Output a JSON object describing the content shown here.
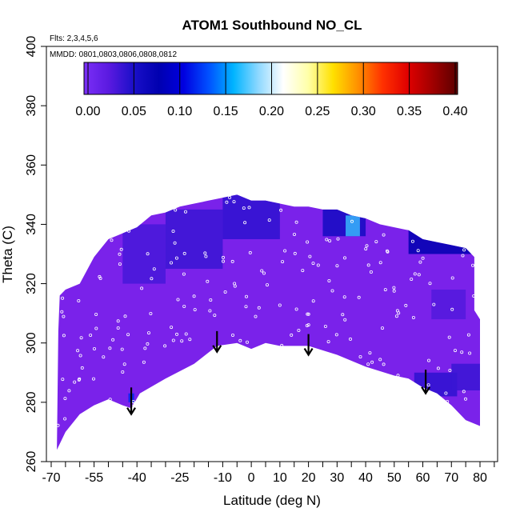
{
  "chart_data": {
    "type": "heatmap",
    "title": "ATOM1 Southbound NO_CL",
    "notes": {
      "flights": "Flts: 2,3,4,5,6",
      "dates": "MMDD: 0801,0803,0806,0808,0812"
    },
    "xlabel": "Latitude (deg N)",
    "ylabel": "Theta (C)",
    "xlim": [
      -70,
      85
    ],
    "ylim": [
      260,
      400
    ],
    "x_ticks": [
      -70,
      -55,
      -40,
      -25,
      -10,
      0,
      10,
      20,
      30,
      40,
      50,
      60,
      70,
      80
    ],
    "x_tick_labels": [
      "-70",
      "-55",
      "-40",
      "-25",
      "-10",
      "0",
      "10",
      "20",
      "30",
      "40",
      "50",
      "60",
      "70",
      "80"
    ],
    "y_ticks": [
      260,
      280,
      300,
      320,
      340,
      360,
      380,
      400
    ],
    "y_tick_labels": [
      "260",
      "280",
      "300",
      "320",
      "340",
      "360",
      "380",
      "400"
    ],
    "colorbar": {
      "range": [
        0,
        0.4
      ],
      "ticks": [
        0,
        0.05,
        0.1,
        0.15,
        0.2,
        0.25,
        0.3,
        0.35,
        0.4
      ],
      "tick_labels": [
        "0.00",
        "0.05",
        "0.10",
        "0.15",
        "0.20",
        "0.25",
        "0.30",
        "0.35",
        "0.40"
      ],
      "stops": [
        "#7b2ff7",
        "#5a1ae0",
        "#1a0fc8",
        "#0000b0",
        "#0000e0",
        "#0050ff",
        "#00b4ff",
        "#8ed8ff",
        "#ffffff",
        "#ffffa8",
        "#ffe000",
        "#ff9000",
        "#ff3000",
        "#e00000",
        "#a00000",
        "#5a0000"
      ]
    },
    "colors": {
      "background_fill": "#7a22ea",
      "low_blue": "#1810c8",
      "mid_blue": "#2a6cf5",
      "high_cyan": "#38c0ff",
      "dot": "#ffffff",
      "arrow": "#000000"
    },
    "data_coverage_boundary": {
      "upper": [
        [
          -67.5,
          304
        ],
        [
          -67,
          316
        ],
        [
          -65,
          318
        ],
        [
          -60,
          320
        ],
        [
          -55,
          329
        ],
        [
          -50,
          335
        ],
        [
          -45,
          337
        ],
        [
          -40,
          339
        ],
        [
          -35,
          343
        ],
        [
          -30,
          344
        ],
        [
          -25,
          346
        ],
        [
          -20,
          347
        ],
        [
          -15,
          348
        ],
        [
          -10,
          349
        ],
        [
          -5,
          350
        ],
        [
          0,
          348
        ],
        [
          5,
          348
        ],
        [
          10,
          347
        ],
        [
          15,
          346
        ],
        [
          20,
          346
        ],
        [
          25,
          345
        ],
        [
          30,
          345
        ],
        [
          35,
          343
        ],
        [
          40,
          342
        ],
        [
          45,
          340
        ],
        [
          50,
          339
        ],
        [
          55,
          338
        ],
        [
          60,
          335
        ],
        [
          65,
          334
        ],
        [
          70,
          333
        ],
        [
          75,
          332
        ],
        [
          78,
          329
        ],
        [
          78,
          311
        ],
        [
          80,
          308
        ],
        [
          80,
          290
        ]
      ],
      "lower": [
        [
          -68,
          264
        ],
        [
          -65,
          270
        ],
        [
          -60,
          276
        ],
        [
          -55,
          279
        ],
        [
          -50,
          281
        ],
        [
          -45,
          279
        ],
        [
          -42,
          278
        ],
        [
          -39,
          283
        ],
        [
          -30,
          288
        ],
        [
          -20,
          293
        ],
        [
          -12,
          299
        ],
        [
          -5,
          300
        ],
        [
          0,
          298
        ],
        [
          5,
          300
        ],
        [
          10,
          299
        ],
        [
          20,
          299
        ],
        [
          30,
          296
        ],
        [
          40,
          292
        ],
        [
          50,
          289
        ],
        [
          55,
          288
        ],
        [
          60,
          285
        ],
        [
          65,
          283
        ],
        [
          70,
          279
        ],
        [
          75,
          274
        ],
        [
          80,
          272
        ]
      ]
    },
    "cells": [
      {
        "x": [
          -45,
          -30
        ],
        "y": [
          320,
          340
        ],
        "level": 0.035
      },
      {
        "x": [
          -30,
          -10
        ],
        "y": [
          325,
          345
        ],
        "level": 0.04
      },
      {
        "x": [
          -10,
          10
        ],
        "y": [
          335,
          350
        ],
        "level": 0.045
      },
      {
        "x": [
          25,
          40
        ],
        "y": [
          336,
          345
        ],
        "level": 0.06
      },
      {
        "x": [
          55,
          79
        ],
        "y": [
          330,
          340
        ],
        "level": 0.08
      },
      {
        "x": [
          63,
          75
        ],
        "y": [
          308,
          318
        ],
        "level": 0.03
      },
      {
        "x": [
          57,
          72
        ],
        "y": [
          282,
          290
        ],
        "level": 0.045
      },
      {
        "x": [
          70,
          80
        ],
        "y": [
          284,
          293
        ],
        "level": 0.04
      },
      {
        "x": [
          -43,
          -41
        ],
        "y": [
          280,
          283
        ],
        "level": 0.12
      }
    ],
    "arrows": [
      {
        "x": -42,
        "y_top": 285,
        "y_tip": 276
      },
      {
        "x": -12,
        "y_top": 304,
        "y_tip": 297
      },
      {
        "x": 20,
        "y_top": 303,
        "y_tip": 296
      },
      {
        "x": 61,
        "y_top": 291,
        "y_tip": 283
      }
    ]
  }
}
